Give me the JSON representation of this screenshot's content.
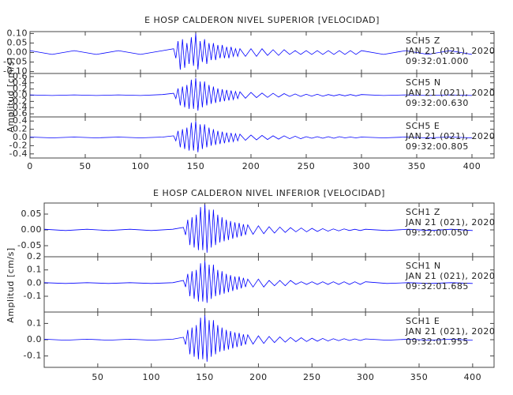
{
  "chart_data": [
    {
      "type": "line",
      "title": "E HOSP CALDERON NIVEL SUPERIOR [VELOCIDAD]",
      "ylabel": "Amplitud [cm/s]",
      "xlim": [
        0,
        420
      ],
      "xticks": [
        0,
        50,
        100,
        150,
        200,
        250,
        300,
        350,
        400
      ],
      "x": [
        0,
        20,
        40,
        60,
        80,
        100,
        120,
        130,
        132,
        134,
        136,
        138,
        140,
        142,
        144,
        146,
        148,
        150,
        152,
        154,
        156,
        158,
        160,
        162,
        164,
        166,
        168,
        170,
        172,
        174,
        176,
        178,
        180,
        182,
        184,
        186,
        188,
        190,
        195,
        200,
        205,
        210,
        215,
        220,
        225,
        230,
        235,
        240,
        245,
        250,
        255,
        260,
        265,
        270,
        275,
        280,
        285,
        290,
        295,
        300,
        320,
        340,
        360,
        380,
        400
      ],
      "series": [
        {
          "name": "SCH5   Z",
          "date": "JAN 21 (021), 2020",
          "time": "09:32:01.000",
          "color": "#0000ff",
          "ylim": [
            -0.11,
            0.11
          ],
          "yticks": [
            {
              "value": 0.1,
              "label": "0.10"
            },
            0.05,
            {
              "value": 0,
              "label": "0.00"
            },
            -0.05,
            {
              "value": -0.1,
              "label": "-0.10"
            }
          ],
          "values": [
            0.01,
            -0.01,
            0.01,
            -0.01,
            0.01,
            -0.01,
            0.01,
            0.02,
            -0.03,
            0.06,
            -0.09,
            0.07,
            -0.08,
            0.05,
            -0.06,
            0.08,
            -0.07,
            0.1,
            -0.09,
            0.06,
            -0.05,
            0.07,
            -0.06,
            0.05,
            -0.04,
            0.05,
            -0.04,
            0.04,
            -0.03,
            0.04,
            -0.03,
            0.03,
            -0.03,
            0.03,
            -0.02,
            0.02,
            -0.02,
            0.02,
            -0.02,
            0.02,
            -0.02,
            0.02,
            -0.015,
            0.015,
            -0.015,
            0.015,
            -0.01,
            0.01,
            -0.01,
            0.01,
            -0.01,
            0.01,
            -0.01,
            0.01,
            -0.01,
            0.01,
            -0.01,
            0.01,
            -0.01,
            0.01,
            -0.01,
            0.01,
            -0.01,
            0.01,
            -0.01
          ]
        },
        {
          "name": "SCH5   N",
          "date": "JAN 21 (021), 2020",
          "time": "09:32:00.630",
          "color": "#0000ff",
          "ylim": [
            -0.7,
            0.7
          ],
          "yticks": [
            0.6,
            0.4,
            0.2,
            {
              "value": 0,
              "label": "0.0"
            },
            -0.2,
            -0.4,
            -0.6
          ],
          "values": [
            0.01,
            -0.01,
            0.01,
            -0.01,
            0.01,
            -0.01,
            0.02,
            0.06,
            -0.11,
            0.22,
            -0.33,
            0.28,
            -0.39,
            0.33,
            -0.44,
            0.5,
            -0.44,
            0.55,
            -0.5,
            0.44,
            -0.39,
            0.44,
            -0.33,
            0.33,
            -0.28,
            0.28,
            -0.25,
            0.22,
            -0.22,
            0.19,
            -0.19,
            0.17,
            -0.17,
            0.15,
            -0.14,
            0.12,
            -0.11,
            0.11,
            -0.1,
            0.09,
            -0.08,
            0.07,
            -0.07,
            0.06,
            -0.06,
            0.05,
            -0.04,
            0.04,
            -0.04,
            0.03,
            -0.03,
            0.03,
            -0.03,
            0.02,
            -0.02,
            0.02,
            -0.02,
            0.02,
            -0.02,
            0.02,
            -0.01,
            0.01,
            -0.01,
            0.01,
            -0.01
          ]
        },
        {
          "name": "SCH5   E",
          "date": "JAN 21 (021), 2020",
          "time": "09:32:00.805",
          "color": "#0000ff",
          "ylim": [
            -0.5,
            0.5
          ],
          "yticks": [
            0.4,
            0.2,
            {
              "value": 0,
              "label": "0.0"
            },
            -0.2,
            -0.4
          ],
          "values": [
            0.01,
            -0.01,
            0.01,
            -0.01,
            0.01,
            -0.01,
            0.01,
            0.04,
            -0.08,
            0.16,
            -0.24,
            0.2,
            -0.28,
            0.24,
            -0.32,
            0.36,
            -0.32,
            0.4,
            -0.36,
            0.32,
            -0.28,
            0.32,
            -0.24,
            0.24,
            -0.2,
            0.2,
            -0.18,
            0.16,
            -0.16,
            0.14,
            -0.14,
            0.12,
            -0.12,
            0.11,
            -0.1,
            0.09,
            -0.08,
            0.08,
            -0.07,
            0.06,
            -0.06,
            0.05,
            -0.05,
            0.04,
            -0.04,
            0.04,
            -0.03,
            0.03,
            -0.03,
            0.02,
            -0.02,
            0.02,
            -0.02,
            0.02,
            -0.02,
            0.02,
            -0.01,
            0.01,
            -0.01,
            0.01,
            -0.01,
            0.01,
            -0.01,
            0.01,
            -0.01
          ]
        }
      ]
    },
    {
      "type": "line",
      "title": "E HOSP CALDERON NIVEL INFERIOR [VELOCIDAD]",
      "ylabel": "Amplitud [cm/s]",
      "xlim": [
        0,
        420
      ],
      "xticks": [
        50,
        100,
        150,
        200,
        250,
        300,
        350,
        400
      ],
      "x": [
        0,
        20,
        40,
        60,
        80,
        100,
        120,
        130,
        132,
        134,
        136,
        138,
        140,
        142,
        144,
        146,
        148,
        150,
        152,
        154,
        156,
        158,
        160,
        162,
        164,
        166,
        168,
        170,
        172,
        174,
        176,
        178,
        180,
        182,
        184,
        186,
        188,
        190,
        195,
        200,
        205,
        210,
        215,
        220,
        225,
        230,
        235,
        240,
        245,
        250,
        255,
        260,
        265,
        270,
        275,
        280,
        285,
        290,
        295,
        300,
        320,
        340,
        360,
        380,
        400
      ],
      "series": [
        {
          "name": "SCH1   Z",
          "date": "JAN 21 (021), 2020",
          "time": "09:32:00.050",
          "color": "#0000ff",
          "ylim": [
            -0.085,
            0.085
          ],
          "yticks": [
            0.05,
            {
              "value": 0,
              "label": "0.00"
            },
            -0.05
          ],
          "values": [
            0.002,
            -0.002,
            0.002,
            -0.002,
            0.002,
            -0.002,
            0.002,
            0.008,
            -0.016,
            0.032,
            -0.048,
            0.04,
            -0.056,
            0.048,
            -0.064,
            0.072,
            -0.064,
            0.08,
            -0.072,
            0.064,
            -0.056,
            0.064,
            -0.048,
            0.048,
            -0.04,
            0.04,
            -0.036,
            0.032,
            -0.032,
            0.028,
            -0.028,
            0.024,
            -0.024,
            0.022,
            -0.02,
            0.018,
            -0.016,
            0.016,
            -0.014,
            0.013,
            -0.012,
            0.01,
            -0.01,
            0.009,
            -0.008,
            0.007,
            -0.006,
            0.006,
            -0.006,
            0.005,
            -0.005,
            0.004,
            -0.004,
            0.003,
            -0.003,
            0.003,
            -0.002,
            0.002,
            -0.002,
            0.002,
            -0.002,
            0.002,
            -0.002,
            0.002,
            -0.002
          ]
        },
        {
          "name": "SCH1   N",
          "date": "JAN 21 (021), 2020",
          "time": "09:32:01.685",
          "color": "#0000ff",
          "ylim": [
            -0.22,
            0.2
          ],
          "yticks": [
            0.2,
            0.1,
            {
              "value": 0,
              "label": "0.0"
            },
            -0.1
          ],
          "values": [
            0.003,
            -0.003,
            0.003,
            -0.003,
            0.003,
            -0.003,
            0.003,
            0.02,
            -0.03,
            0.07,
            -0.1,
            0.09,
            -0.12,
            0.1,
            -0.14,
            0.15,
            -0.14,
            0.17,
            -0.15,
            0.14,
            -0.12,
            0.14,
            -0.1,
            0.1,
            -0.09,
            0.09,
            -0.08,
            0.07,
            -0.07,
            0.06,
            -0.06,
            0.05,
            -0.05,
            0.05,
            -0.04,
            0.04,
            -0.03,
            0.03,
            -0.03,
            0.03,
            -0.03,
            0.02,
            -0.02,
            0.02,
            -0.02,
            0.02,
            -0.01,
            0.01,
            -0.01,
            0.01,
            -0.01,
            0.01,
            -0.01,
            0.01,
            -0.01,
            0.01,
            -0.01,
            0.01,
            -0.01,
            0.01,
            -0.003,
            0.003,
            -0.003,
            0.003,
            -0.003
          ]
        },
        {
          "name": "SCH1   E",
          "date": "JAN 21 (021), 2020",
          "time": "09:32:01.955",
          "color": "#0000ff",
          "ylim": [
            -0.17,
            0.17
          ],
          "yticks": [
            0.1,
            {
              "value": 0,
              "label": "0.0"
            },
            -0.1
          ],
          "values": [
            0.003,
            -0.003,
            0.003,
            -0.003,
            0.003,
            -0.003,
            0.003,
            0.015,
            -0.03,
            0.06,
            -0.09,
            0.075,
            -0.105,
            0.09,
            -0.12,
            0.135,
            -0.12,
            0.15,
            -0.135,
            0.12,
            -0.105,
            0.12,
            -0.09,
            0.09,
            -0.075,
            0.075,
            -0.068,
            0.06,
            -0.06,
            0.053,
            -0.053,
            0.045,
            -0.045,
            0.042,
            -0.038,
            0.033,
            -0.03,
            0.03,
            -0.027,
            0.024,
            -0.023,
            0.02,
            -0.018,
            0.017,
            -0.015,
            0.014,
            -0.012,
            0.012,
            -0.011,
            0.009,
            -0.009,
            0.008,
            -0.008,
            0.006,
            -0.006,
            0.006,
            -0.005,
            0.005,
            -0.005,
            0.005,
            -0.003,
            0.003,
            -0.003,
            0.003,
            -0.003
          ]
        }
      ]
    }
  ]
}
